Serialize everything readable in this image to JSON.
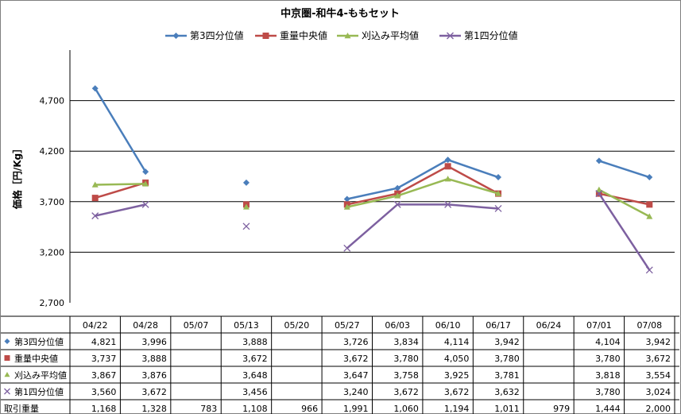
{
  "chart_data": {
    "type": "line",
    "title": "中京圏-和牛4-ももセット",
    "ylabel": "価格［円/Kg］",
    "xlabel": "",
    "categories": [
      "04/22",
      "04/28",
      "05/07",
      "05/13",
      "05/20",
      "05/27",
      "06/03",
      "06/10",
      "06/17",
      "06/24",
      "07/01",
      "07/08"
    ],
    "ylim": [
      2700,
      5200
    ],
    "yticks": [
      2700,
      3200,
      3700,
      4200,
      4700
    ],
    "ytick_labels": [
      "2,700",
      "3,200",
      "3,700",
      "4,200",
      "4,700"
    ],
    "grid": true,
    "legend_position": "top",
    "series": [
      {
        "name": "第3四分位値",
        "color": "#4a7ebb",
        "marker": "diamond",
        "values": [
          4821,
          3996,
          null,
          3888,
          null,
          3726,
          3834,
          4114,
          3942,
          null,
          4104,
          3942
        ],
        "labels": [
          "4,821",
          "3,996",
          "",
          "3,888",
          "",
          "3,726",
          "3,834",
          "4,114",
          "3,942",
          "",
          "4,104",
          "3,942"
        ]
      },
      {
        "name": "重量中央値",
        "color": "#be4b48",
        "marker": "square",
        "values": [
          3737,
          3888,
          null,
          3672,
          null,
          3672,
          3780,
          4050,
          3780,
          null,
          3780,
          3672
        ],
        "labels": [
          "3,737",
          "3,888",
          "",
          "3,672",
          "",
          "3,672",
          "3,780",
          "4,050",
          "3,780",
          "",
          "3,780",
          "3,672"
        ]
      },
      {
        "name": "刈込み平均値",
        "color": "#98b954",
        "marker": "triangle",
        "values": [
          3867,
          3876,
          null,
          3648,
          null,
          3647,
          3758,
          3925,
          3781,
          null,
          3818,
          3554
        ],
        "labels": [
          "3,867",
          "3,876",
          "",
          "3,648",
          "",
          "3,647",
          "3,758",
          "3,925",
          "3,781",
          "",
          "3,818",
          "3,554"
        ]
      },
      {
        "name": "第1四分位値",
        "color": "#7d60a0",
        "marker": "x",
        "values": [
          3560,
          3672,
          null,
          3456,
          null,
          3240,
          3672,
          3672,
          3632,
          null,
          3780,
          3024
        ],
        "labels": [
          "3,560",
          "3,672",
          "",
          "3,456",
          "",
          "3,240",
          "3,672",
          "3,672",
          "3,632",
          "",
          "3,780",
          "3,024"
        ]
      }
    ],
    "table_extra_row": {
      "name": "取引重量",
      "labels": [
        "1,168",
        "1,328",
        "783",
        "1,108",
        "966",
        "1,991",
        "1,060",
        "1,194",
        "1,011",
        "979",
        "1,444",
        "2,000"
      ]
    }
  }
}
